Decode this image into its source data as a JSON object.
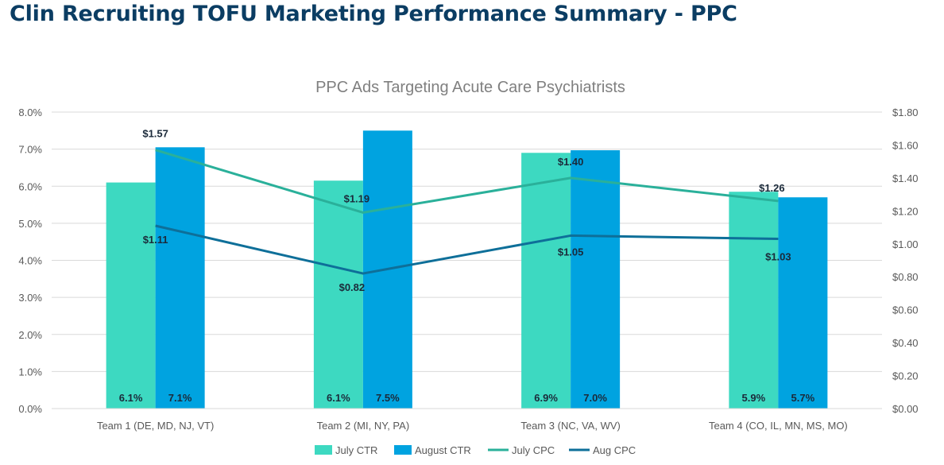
{
  "page": {
    "title": "Clin Recruiting TOFU Marketing Performance Summary - PPC"
  },
  "colors": {
    "title": "#0b3d63",
    "july_ctr": "#3dd9c1",
    "august_ctr": "#00a3e0",
    "july_cpc": "#2ab09a",
    "aug_cpc": "#0e6f99",
    "grid": "#d9d9d9",
    "axis_text": "#595959"
  },
  "chart_data": {
    "type": "bar",
    "title": "PPC Ads Targeting Acute Care Psychiatrists",
    "categories": [
      "Team 1 (DE, MD, NJ, VT)",
      "Team 2 (MI, NY, PA)",
      "Team 3 (NC, VA, WV)",
      "Team 4 (CO, IL, MN, MS, MO)"
    ],
    "series": [
      {
        "name": "July CTR",
        "type": "bar",
        "axis": "left",
        "values": [
          6.1,
          6.15,
          6.9,
          5.85
        ],
        "labels": [
          "6.1%",
          "6.1%",
          "6.9%",
          "5.9%"
        ]
      },
      {
        "name": "August CTR",
        "type": "bar",
        "axis": "left",
        "values": [
          7.05,
          7.5,
          6.97,
          5.7
        ],
        "labels": [
          "7.1%",
          "7.5%",
          "7.0%",
          "5.7%"
        ]
      },
      {
        "name": "July CPC",
        "type": "line",
        "axis": "right",
        "values": [
          1.57,
          1.19,
          1.4,
          1.26
        ],
        "labels": [
          "$1.57",
          "$1.19",
          "$1.40",
          "$1.26"
        ]
      },
      {
        "name": "Aug CPC",
        "type": "line",
        "axis": "right",
        "values": [
          1.11,
          0.82,
          1.05,
          1.03
        ],
        "labels": [
          "$1.11",
          "$0.82",
          "$1.05",
          "$1.03"
        ]
      }
    ],
    "y_left": {
      "ylim": [
        0,
        8
      ],
      "ticks": [
        "0.0%",
        "1.0%",
        "2.0%",
        "3.0%",
        "4.0%",
        "5.0%",
        "6.0%",
        "7.0%",
        "8.0%"
      ]
    },
    "y_right": {
      "ylim": [
        0,
        1.8
      ],
      "ticks": [
        "$0.00",
        "$0.20",
        "$0.40",
        "$0.60",
        "$0.80",
        "$1.00",
        "$1.20",
        "$1.40",
        "$1.60",
        "$1.80"
      ]
    },
    "grid": true,
    "legend": "bottom",
    "xlabel": "",
    "ylabel": ""
  }
}
